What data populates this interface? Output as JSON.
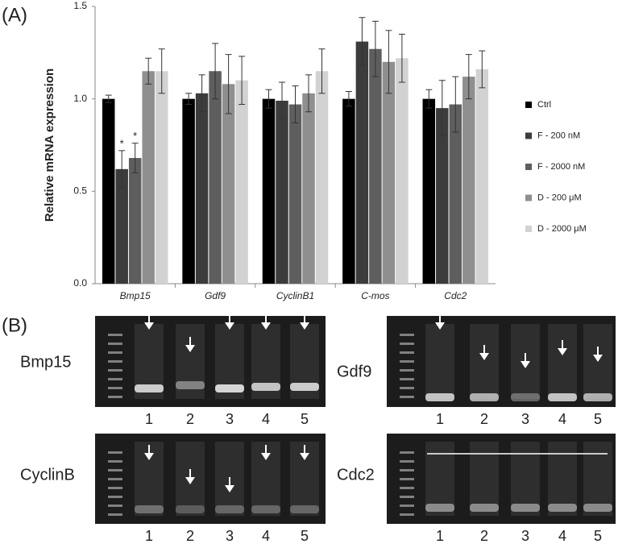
{
  "panel_labels": [
    "(A)",
    "(B)"
  ],
  "chart_data": {
    "type": "bar",
    "y_label": "Relative mRNA expression",
    "categories": [
      "Bmp15",
      "Gdf9",
      "CyclinB1",
      "C-mos",
      "Cdc2"
    ],
    "series": [
      {
        "name": "Ctrl",
        "color": "#000000",
        "values": [
          1.0,
          1.0,
          1.0,
          1.0,
          1.0
        ],
        "errors": [
          0.02,
          0.03,
          0.05,
          0.04,
          0.05
        ]
      },
      {
        "name": "F - 200 nM",
        "color": "#3c3c3c",
        "values": [
          0.62,
          1.03,
          0.99,
          1.31,
          0.95
        ],
        "errors": [
          0.1,
          0.1,
          0.1,
          0.13,
          0.15
        ]
      },
      {
        "name": "F - 2000 nM",
        "color": "#5e5e5e",
        "values": [
          0.68,
          1.15,
          0.97,
          1.27,
          0.97
        ],
        "errors": [
          0.08,
          0.15,
          0.1,
          0.15,
          0.15
        ]
      },
      {
        "name": "D - 200 μM",
        "color": "#8f8f8f",
        "values": [
          1.15,
          1.08,
          1.03,
          1.2,
          1.12
        ],
        "errors": [
          0.07,
          0.16,
          0.1,
          0.17,
          0.12
        ]
      },
      {
        "name": "D - 2000 μM",
        "color": "#d2d2d2",
        "values": [
          1.15,
          1.1,
          1.15,
          1.22,
          1.16
        ],
        "errors": [
          0.12,
          0.13,
          0.12,
          0.13,
          0.1
        ]
      }
    ],
    "annotations": [
      "*",
      "*"
    ],
    "ylim": [
      0,
      1.5
    ],
    "yticks": [
      {
        "value": 0,
        "label": "0.0"
      },
      {
        "value": 0.5,
        "label": "0.5"
      },
      {
        "value": 1,
        "label": "1.0"
      },
      {
        "value": 1.5,
        "label": "1.5"
      }
    ]
  },
  "gels": [
    {
      "label": "Bmp15",
      "lanes": [
        "1",
        "2",
        "3",
        "4",
        "5"
      ]
    },
    {
      "label": "Gdf9",
      "lanes": [
        "1",
        "2",
        "3",
        "4",
        "5"
      ]
    },
    {
      "label": "CyclinB",
      "lanes": [
        "1",
        "2",
        "3",
        "4",
        "5"
      ]
    },
    {
      "label": "Cdc2",
      "lanes": [
        "1",
        "2",
        "3",
        "4",
        "5"
      ]
    }
  ]
}
